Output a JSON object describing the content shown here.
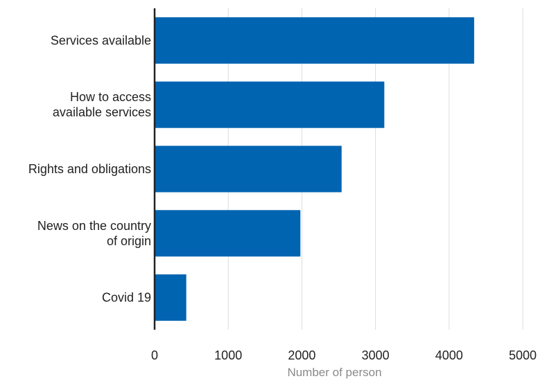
{
  "chart_data": {
    "type": "bar",
    "orientation": "horizontal",
    "categories": [
      [
        "Services available"
      ],
      [
        "How to access",
        "available services"
      ],
      [
        "Rights and obligations"
      ],
      [
        "News on the country",
        "of origin"
      ],
      [
        "Covid 19"
      ]
    ],
    "values": [
      4340,
      3120,
      2540,
      1980,
      430
    ],
    "xlabel": "Number of person",
    "ylabel": "",
    "xlim": [
      0,
      5000
    ],
    "xticks": [
      0,
      1000,
      2000,
      3000,
      4000,
      5000
    ],
    "grid": "vertical",
    "legend": "none",
    "colors": {
      "bar": "#0064b1",
      "grid": "#dddddd",
      "axis": "#222222"
    }
  }
}
